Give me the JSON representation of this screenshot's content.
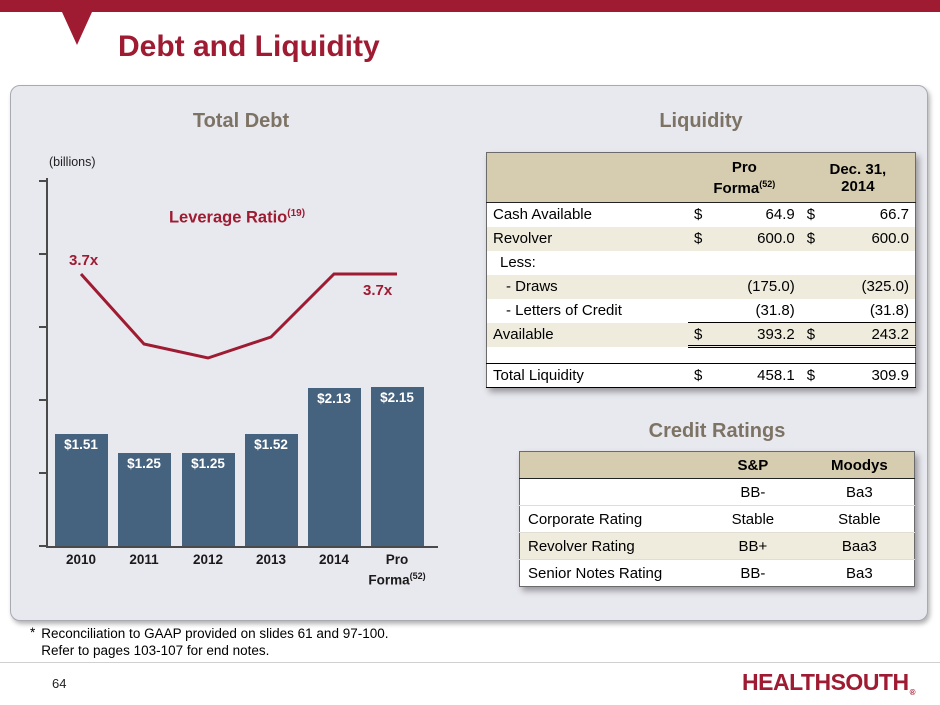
{
  "slide": {
    "title": "Debt and Liquidity",
    "footnote_star": "*",
    "footnote_line1": "Reconciliation to GAAP provided on slides 61 and 97-100.",
    "footnote_line2": "Refer to pages 103-107 for end notes.",
    "page_number": "64",
    "logo_text": "HEALTHSOUTH",
    "logo_registered": "®"
  },
  "colors": {
    "brand_red": "#9e1b32",
    "bar_blue": "#45627e",
    "table_header_tan": "#d6cdb0",
    "row_beige": "#efebdd",
    "panel_background": "#e8e8ef",
    "section_title_gray": "#7d7365"
  },
  "chart_data": {
    "type": "bar",
    "title": "Total Debt",
    "ylabel": "(billions)",
    "categories": [
      "2010",
      "2011",
      "2012",
      "2013",
      "2014",
      "Pro Forma"
    ],
    "category_sups": [
      "",
      "",
      "",
      "",
      "",
      "(52)"
    ],
    "values": [
      1.51,
      1.25,
      1.25,
      1.52,
      2.13,
      2.15
    ],
    "bar_labels": [
      "$1.51",
      "$1.25",
      "$1.25",
      "$1.52",
      "$2.13",
      "$2.15"
    ],
    "ylim": [
      0,
      2.5
    ],
    "grid": false,
    "line_overlay": {
      "name": "Leverage Ratio",
      "name_sup": "(19)",
      "values": [
        3.7,
        3.2,
        3.1,
        3.25,
        3.7,
        3.7
      ],
      "first_label": "3.7x",
      "last_label": "3.7x"
    }
  },
  "liquidity": {
    "title": "Liquidity",
    "header": {
      "col1_line1": "Pro",
      "col1_line2": "Forma",
      "col1_sup": "(52)",
      "col2_line1": "Dec. 31,",
      "col2_line2": "2014"
    },
    "rows": [
      {
        "label": "Cash Available",
        "d1": "$",
        "v1": "64.9",
        "d2": "$",
        "v2": "66.7"
      },
      {
        "label": "Revolver",
        "d1": "$",
        "v1": "600.0",
        "d2": "$",
        "v2": "600.0"
      },
      {
        "label": "Less:",
        "d1": "",
        "v1": "",
        "d2": "",
        "v2": ""
      },
      {
        "label": "- Draws",
        "d1": "",
        "v1": "(175.0)",
        "d2": "",
        "v2": "(325.0)"
      },
      {
        "label": "- Letters of Credit",
        "d1": "",
        "v1": "(31.8)",
        "d2": "",
        "v2": "(31.8)"
      },
      {
        "label": "Available",
        "d1": "$",
        "v1": "393.2",
        "d2": "$",
        "v2": "243.2"
      },
      {
        "label": "",
        "d1": "",
        "v1": "",
        "d2": "",
        "v2": ""
      },
      {
        "label": "Total Liquidity",
        "d1": "$",
        "v1": "458.1",
        "d2": "$",
        "v2": "309.9"
      }
    ]
  },
  "credit_ratings": {
    "title": "Credit Ratings",
    "header": {
      "col1": "S&P",
      "col2": "Moodys"
    },
    "rows": [
      {
        "label": "",
        "sp": "BB-",
        "moodys": "Ba3"
      },
      {
        "label": "Corporate Rating",
        "sp": "Stable",
        "moodys": "Stable"
      },
      {
        "label": "Revolver Rating",
        "sp": "BB+",
        "moodys": "Baa3"
      },
      {
        "label": "Senior Notes Rating",
        "sp": "BB-",
        "moodys": "Ba3"
      }
    ]
  }
}
